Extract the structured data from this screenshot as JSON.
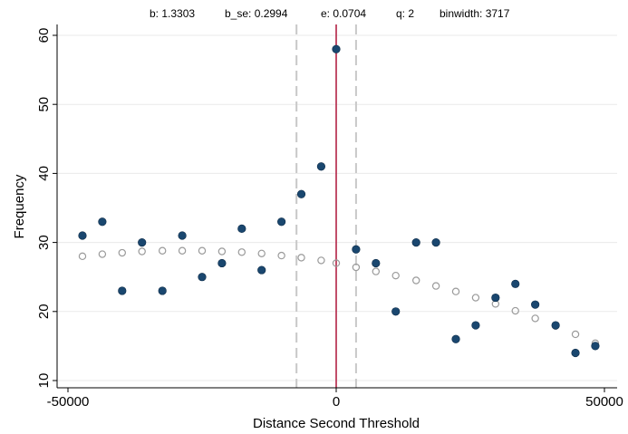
{
  "header": {
    "b": "b: 1.3303",
    "b_se": "b_se: 0.2994",
    "e": "e: 0.0704",
    "q": "q: 2",
    "binwidth": "binwidth: 3717"
  },
  "chart_data": {
    "type": "scatter",
    "xlabel": "Distance Second Threshold",
    "ylabel": "Frequency",
    "xlim": [
      -50000,
      50000
    ],
    "ylim": [
      10,
      60
    ],
    "x_ticks": [
      -50000,
      0,
      50000
    ],
    "x_tick_labels": [
      "-50000",
      "0",
      "50000"
    ],
    "y_ticks": [
      10,
      20,
      30,
      40,
      50,
      60
    ],
    "y_tick_labels": [
      "10",
      "20",
      "30",
      "40",
      "50",
      "60"
    ],
    "grid": true,
    "threshold_line": {
      "x": 0,
      "color": "#b22245"
    },
    "bandwidth_lines": {
      "x": [
        -7400,
        3700
      ],
      "color": "#c8c8c8"
    },
    "observed": {
      "color": "#1a476f",
      "x": [
        -47300,
        -43600,
        -39900,
        -36200,
        -32400,
        -28700,
        -25000,
        -21300,
        -17600,
        -13900,
        -10200,
        -6500,
        -2800,
        0,
        3700,
        7400,
        11100,
        14900,
        18600,
        22300,
        26000,
        29700,
        33400,
        37100,
        40900,
        44600,
        48300
      ],
      "y": [
        31,
        33,
        23,
        30,
        23,
        31,
        25,
        27,
        32,
        26,
        33,
        37,
        41,
        58,
        29,
        27,
        20,
        30,
        30,
        16,
        18,
        22,
        24,
        21,
        18,
        14,
        15
      ]
    },
    "fitted": {
      "color": "#9a9a9a",
      "x": [
        -47300,
        -43600,
        -39900,
        -36200,
        -32400,
        -28700,
        -25000,
        -21300,
        -17600,
        -13900,
        -10200,
        -6500,
        -2800,
        0,
        3700,
        7400,
        11100,
        14900,
        18600,
        22300,
        26000,
        29700,
        33400,
        37100,
        40900,
        44600,
        48300
      ],
      "y": [
        28.0,
        28.3,
        28.5,
        28.7,
        28.8,
        28.8,
        28.8,
        28.7,
        28.6,
        28.4,
        28.1,
        27.8,
        27.4,
        27.0,
        26.4,
        25.8,
        25.2,
        24.5,
        23.7,
        22.9,
        22.0,
        21.1,
        20.1,
        19.0,
        17.9,
        16.7,
        15.4
      ]
    }
  }
}
